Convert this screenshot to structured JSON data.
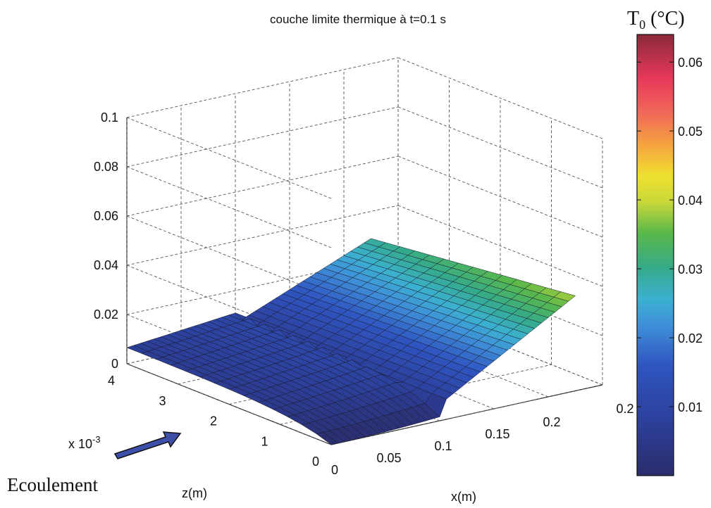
{
  "chart_data": {
    "type": "surface",
    "title": "couche limite thermique à t=0.1 s",
    "xlabel": "x(m)",
    "ylabel": "z(m)",
    "y_multiplier": "x 10",
    "y_multiplier_exp": "-3",
    "x_ticks": [
      "0",
      "0.05",
      "0.1",
      "0.15",
      "0.2"
    ],
    "x_ticks_right": "0.2",
    "y_ticks": [
      "0",
      "1",
      "2",
      "3",
      "4"
    ],
    "z_ticks": [
      "0",
      "0.02",
      "0.04",
      "0.06",
      "0.08",
      "0.1"
    ],
    "xlim": [
      0,
      0.25
    ],
    "ylim": [
      0,
      0.004
    ],
    "zlim": [
      0,
      0.1
    ],
    "grid": true,
    "colormap": "jet",
    "colorbar": {
      "label": "T",
      "label_sub": "0",
      "label_unit": " (°C)",
      "range": [
        0,
        0.064
      ],
      "ticks": [
        "0.01",
        "0.02",
        "0.03",
        "0.04",
        "0.05",
        "0.06"
      ]
    },
    "surface_profile": {
      "x_edge": 0.1,
      "z_at_far_x": 0.045,
      "z_at_origin_x": 0.008,
      "z_at_y0": 0.0,
      "z_at_y_max": 0.011
    },
    "annotation": "Ecoulement"
  }
}
